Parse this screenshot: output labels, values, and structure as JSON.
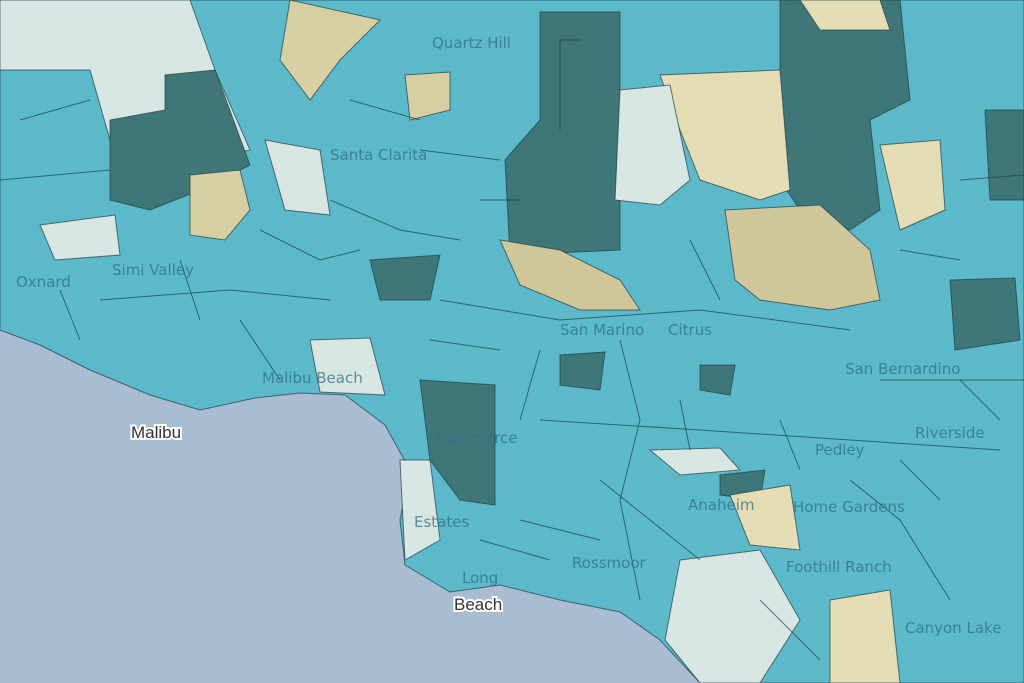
{
  "map": {
    "places": [
      "Quartz Hill",
      "Santa Clarita",
      "Simi Valley",
      "Oxnard",
      "Malibu Beach",
      "San Marino",
      "Citrus",
      "San Bernardino",
      "Riverside",
      "Pedley",
      "Home Gardens",
      "Foothill Ranch",
      "Canyon Lake",
      "Long",
      "Commerce",
      "Anaheim",
      "Rossmoor",
      "Estates"
    ],
    "major_labels": [
      "Malibu",
      "Beach"
    ]
  }
}
